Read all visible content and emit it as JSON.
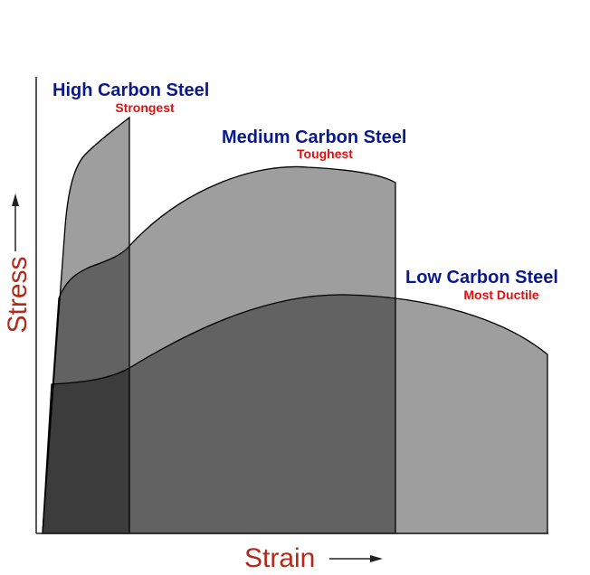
{
  "axes": {
    "y_label": "Stress",
    "x_label": "Strain"
  },
  "curves": [
    {
      "label": "High Carbon Steel",
      "note": "Strongest"
    },
    {
      "label": "Medium Carbon Steel",
      "note": "Toughest"
    },
    {
      "label": "Low Carbon Steel",
      "note": "Most Ductile"
    }
  ]
}
